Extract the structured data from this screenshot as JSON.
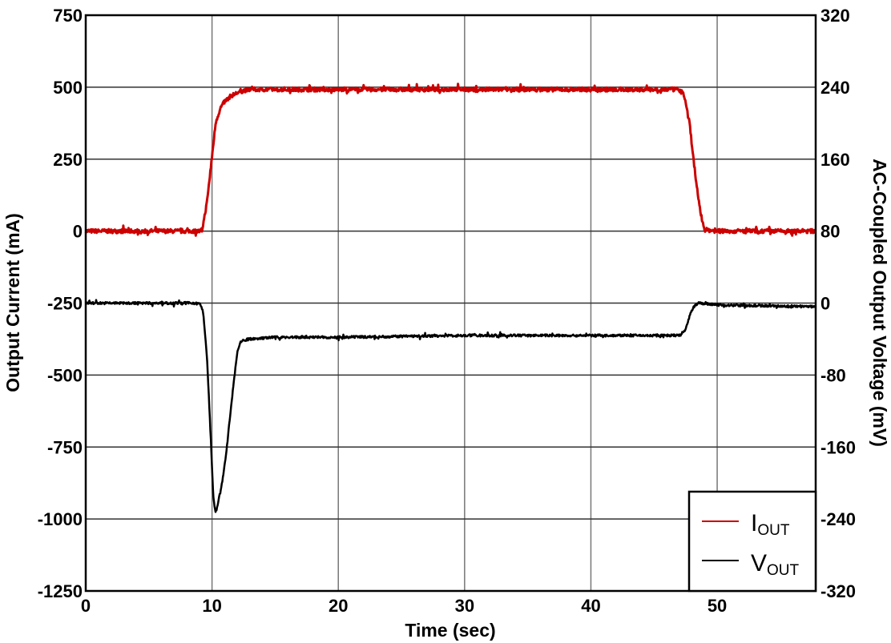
{
  "chart_data": {
    "type": "line",
    "title": "",
    "xlabel": "Time (sec)",
    "ylabel": "Output Current (mA)",
    "y2label": "AC-Coupled Output Voltage (mV)",
    "xlim": [
      0,
      57.8
    ],
    "ylim": [
      -1250,
      750
    ],
    "y2lim": [
      -320,
      320
    ],
    "grid": true,
    "legend_position": "lower right",
    "x_ticks": [
      0,
      10,
      20,
      30,
      40,
      50
    ],
    "y_ticks": [
      750,
      500,
      250,
      0,
      -250,
      -500,
      -750,
      -1000,
      -1250
    ],
    "y2_ticks": [
      320,
      240,
      160,
      80,
      0,
      -80,
      -160,
      -240,
      -320
    ],
    "series": [
      {
        "name": "IOUT",
        "axis": "left",
        "color": "#cc0000",
        "x": [
          0,
          9.2,
          9.6,
          10.0,
          10.3,
          10.7,
          11.0,
          11.5,
          12.0,
          12.5,
          13.0,
          20,
          30,
          40,
          47.0,
          47.4,
          47.8,
          48.0,
          48.3,
          48.7,
          49.0,
          50,
          57.8
        ],
        "values": [
          0,
          0,
          100,
          260,
          380,
          430,
          450,
          470,
          480,
          488,
          492,
          492,
          492,
          492,
          492,
          470,
          380,
          300,
          180,
          60,
          5,
          0,
          0
        ]
      },
      {
        "name": "VOUT",
        "axis": "right",
        "color": "#000000",
        "x": [
          0,
          9.0,
          9.3,
          9.6,
          9.9,
          10.1,
          10.3,
          10.5,
          10.8,
          11.1,
          11.4,
          11.7,
          12.0,
          12.3,
          13.0,
          15,
          20,
          30,
          40,
          47.0,
          47.5,
          47.8,
          48.1,
          48.5,
          50,
          57.8
        ],
        "values": [
          0,
          0,
          -10,
          -60,
          -150,
          -215,
          -235,
          -220,
          -200,
          -170,
          -130,
          -90,
          -55,
          -42,
          -40,
          -38,
          -38,
          -36,
          -36,
          -36,
          -30,
          -15,
          -5,
          0,
          -2,
          -4
        ]
      }
    ],
    "legend": [
      {
        "label": "I",
        "sub": "OUT",
        "color": "#cc0000"
      },
      {
        "label": "V",
        "sub": "OUT",
        "color": "#000000"
      }
    ]
  }
}
